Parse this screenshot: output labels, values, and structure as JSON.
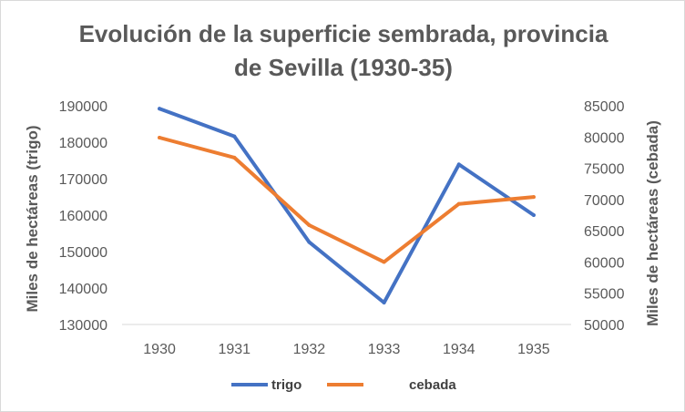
{
  "chart_data": {
    "type": "line",
    "title_lines": [
      "Evolución de la superficie sembrada, provincia",
      "de Sevilla (1930-35)"
    ],
    "categories": [
      "1930",
      "1931",
      "1932",
      "1933",
      "1934",
      "1935"
    ],
    "y_left": {
      "label": "Miles de hectáreas (trigo)",
      "ylim": [
        130000,
        190000
      ],
      "ticks": [
        "130000",
        "140000",
        "150000",
        "160000",
        "170000",
        "180000",
        "190000"
      ]
    },
    "y_right": {
      "label": "Miles de hectáreas (cebada)",
      "ylim": [
        50000,
        85000
      ],
      "ticks": [
        "50000",
        "55000",
        "60000",
        "65000",
        "70000",
        "75000",
        "80000",
        "85000"
      ]
    },
    "series": [
      {
        "name": "trigo",
        "axis": "left",
        "color": "#4472C4",
        "values": [
          189200,
          181600,
          152600,
          136000,
          173900,
          160000
        ]
      },
      {
        "name": "cebada",
        "axis": "right",
        "color": "#ED7D31",
        "values": [
          79900,
          76700,
          65900,
          60000,
          69300,
          70400
        ]
      }
    ],
    "grid": false,
    "legend": "bottom"
  }
}
